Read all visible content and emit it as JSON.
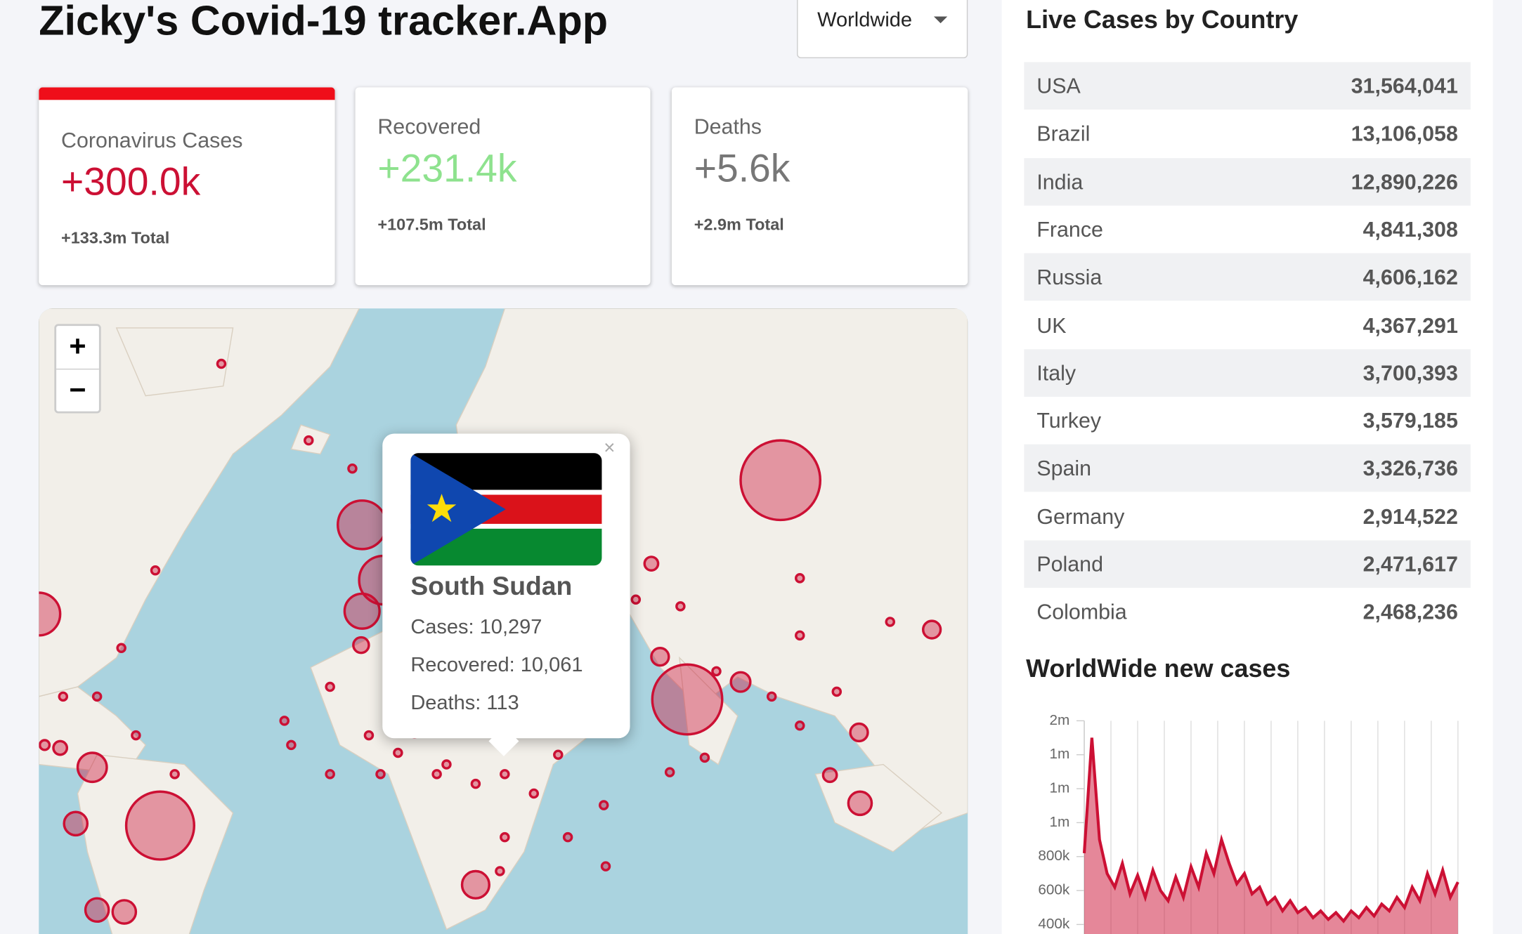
{
  "header": {
    "title": "Zicky's Covid-19 tracker.App",
    "dropdown": "Worldwide"
  },
  "stats": [
    {
      "label": "Coronavirus Cases",
      "today": "+300.0k",
      "total": "+133.3m Total"
    },
    {
      "label": "Recovered",
      "today": "+231.4k",
      "total": "+107.5m Total"
    },
    {
      "label": "Deaths",
      "today": "+5.6k",
      "total": "+2.9m Total"
    }
  ],
  "map": {
    "zoom_in": "+",
    "zoom_out": "−",
    "popup": {
      "close": "×",
      "country": "South Sudan",
      "cases": "Cases: 10,297",
      "recovered": "Recovered: 10,061",
      "deaths": "Deaths: 113"
    }
  },
  "table": {
    "title": "Live Cases by Country",
    "rows": [
      [
        "USA",
        "31,564,041"
      ],
      [
        "Brazil",
        "13,106,058"
      ],
      [
        "India",
        "12,890,226"
      ],
      [
        "France",
        "4,841,308"
      ],
      [
        "Russia",
        "4,606,162"
      ],
      [
        "UK",
        "4,367,291"
      ],
      [
        "Italy",
        "3,700,393"
      ],
      [
        "Turkey",
        "3,579,185"
      ],
      [
        "Spain",
        "3,326,736"
      ],
      [
        "Germany",
        "2,914,522"
      ],
      [
        "Poland",
        "2,471,617"
      ],
      [
        "Colombia",
        "2,468,236"
      ]
    ]
  },
  "chart_data": {
    "type": "line",
    "title": "WorldWide new cases",
    "color": "#cc1034",
    "ylim": [
      400000,
      1600000
    ],
    "yticks": [
      {
        "value": 1600000,
        "label": "2m"
      },
      {
        "value": 1400000,
        "label": "1m"
      },
      {
        "value": 1200000,
        "label": "1m"
      },
      {
        "value": 1000000,
        "label": "1m"
      },
      {
        "value": 800000,
        "label": "800k"
      },
      {
        "value": 600000,
        "label": "600k"
      },
      {
        "value": 400000,
        "label": "400k"
      }
    ],
    "values": [
      820000,
      1500000,
      900000,
      700000,
      620000,
      760000,
      580000,
      690000,
      560000,
      720000,
      600000,
      540000,
      680000,
      560000,
      740000,
      620000,
      820000,
      700000,
      900000,
      760000,
      640000,
      700000,
      580000,
      620000,
      520000,
      560000,
      480000,
      540000,
      470000,
      500000,
      440000,
      480000,
      430000,
      470000,
      420000,
      480000,
      440000,
      500000,
      450000,
      520000,
      480000,
      560000,
      500000,
      620000,
      540000,
      700000,
      580000,
      720000,
      560000,
      650000
    ]
  }
}
